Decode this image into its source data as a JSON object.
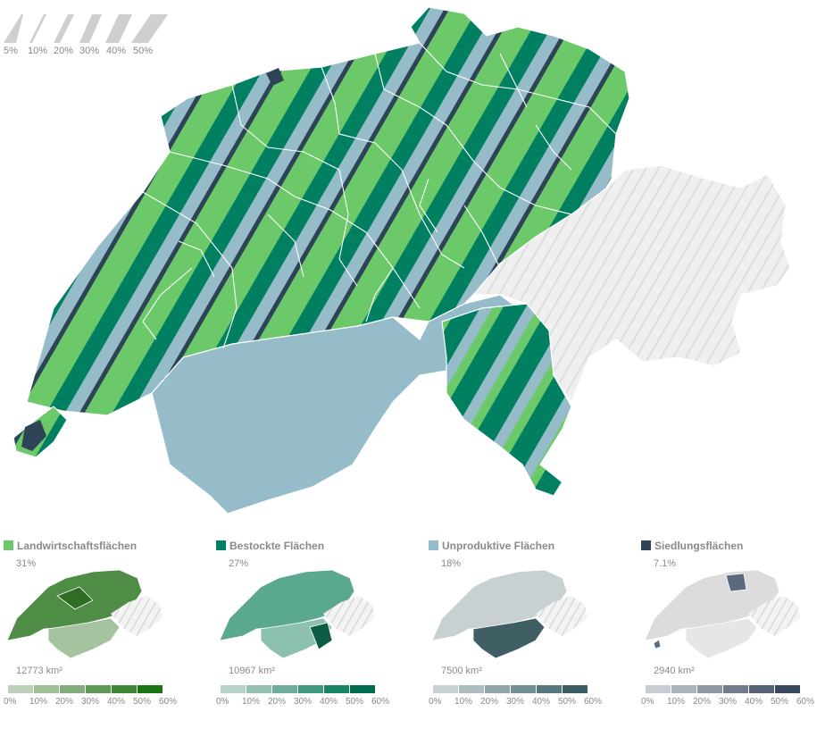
{
  "stripe_legend": {
    "labels": [
      "5%",
      "10%",
      "20%",
      "30%",
      "40%",
      "50%"
    ]
  },
  "main_map": {
    "colors": {
      "agriculture": "#6cc96a",
      "forest": "#008060",
      "unproductive": "#95bcc8",
      "settlement": "#2e4356",
      "graubuenden": "#e8e8e8",
      "border": "#ffffff"
    }
  },
  "panels": [
    {
      "title": "Landwirtschaftsflächen",
      "swatch": "#6cc96a",
      "percent": "31%",
      "area": "12773 km²",
      "scale_colors": [
        "#bccfb8",
        "#9fbf98",
        "#80ad79",
        "#5f9a56",
        "#3f8736",
        "#1d7414"
      ],
      "map_main": "#4f8c45",
      "map_light": "#a6c39f",
      "map_dark": "#2f6d25"
    },
    {
      "title": "Bestockte Flächen",
      "swatch": "#008060",
      "percent": "27%",
      "area": "10967 km²",
      "scale_colors": [
        "#b6d2c9",
        "#94c1b3",
        "#6fae9c",
        "#3f9880",
        "#1a8467",
        "#006a4e"
      ],
      "map_main": "#5aa88f",
      "map_light": "#8cc1b0",
      "map_dark": "#0b5d45"
    },
    {
      "title": "Unproduktive Flächen",
      "swatch": "#95bcc8",
      "percent": "18%",
      "area": "7500 km²",
      "scale_colors": [
        "#c8d0d2",
        "#adbcbf",
        "#90a6aa",
        "#738f94",
        "#56777d",
        "#3b5e64"
      ],
      "map_main": "#c8d0d2",
      "map_light": "#dfe3e4",
      "map_dark": "#3f5f64"
    },
    {
      "title": "Siedlungsflächen",
      "swatch": "#2e4356",
      "percent": "7.1%",
      "area": "2940 km²",
      "scale_colors": [
        "#c9ccd2",
        "#acb2bc",
        "#8f97a4",
        "#727c8c",
        "#556274",
        "#39485c"
      ],
      "map_main": "#dcdcdc",
      "map_light": "#e6e6e6",
      "map_dark": "#5c6a80"
    }
  ],
  "scale_ticks": [
    "0%",
    "10%",
    "20%",
    "30%",
    "40%",
    "50%",
    "60%"
  ]
}
